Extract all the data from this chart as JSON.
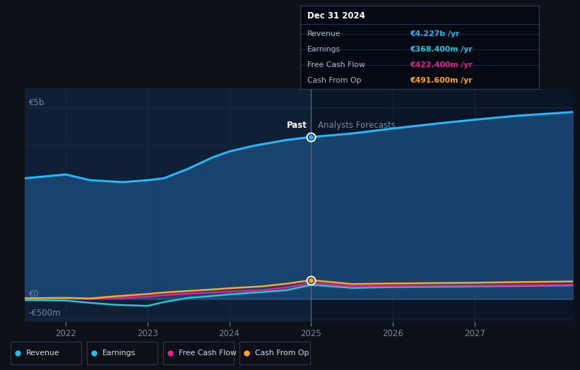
{
  "bg_color": "#0d1117",
  "plot_bg_past": "#0f1f35",
  "plot_bg_future": "#0a1628",
  "grid_color": "#1a2d45",
  "divider_x": 2025,
  "past_label": "Past",
  "forecast_label": "Analysts Forecasts",
  "ylabel_top": "€5b",
  "ylabel_zero": "€0",
  "ylabel_bottom": "-€500m",
  "x_ticks": [
    2022,
    2023,
    2024,
    2025,
    2026,
    2027
  ],
  "ylim": [
    -600,
    5500
  ],
  "xlim": [
    2021.5,
    2028.2
  ],
  "revenue": {
    "x": [
      2021.5,
      2022.0,
      2022.3,
      2022.7,
      2023.0,
      2023.2,
      2023.5,
      2023.8,
      2024.0,
      2024.3,
      2024.7,
      2025.0,
      2025.5,
      2026.0,
      2026.5,
      2027.0,
      2027.5,
      2028.2
    ],
    "y": [
      3150,
      3250,
      3100,
      3050,
      3100,
      3150,
      3400,
      3700,
      3850,
      4000,
      4150,
      4227,
      4320,
      4450,
      4570,
      4680,
      4780,
      4880
    ],
    "color": "#29b6f6",
    "fill_color": "#1a4a7a",
    "fill_alpha": 0.85,
    "linewidth": 2.2,
    "marker_x": 2025.0,
    "marker_y": 4227
  },
  "earnings": {
    "x": [
      2021.5,
      2022.0,
      2022.3,
      2022.6,
      2023.0,
      2023.2,
      2023.5,
      2023.8,
      2024.0,
      2024.4,
      2024.7,
      2025.0,
      2025.5,
      2026.0,
      2026.5,
      2027.0,
      2027.5,
      2028.2
    ],
    "y": [
      -30,
      -40,
      -100,
      -150,
      -180,
      -80,
      30,
      80,
      120,
      180,
      230,
      368,
      290,
      310,
      320,
      330,
      340,
      355
    ],
    "color": "#26c6da",
    "linewidth": 1.8
  },
  "fcf": {
    "x": [
      2021.5,
      2022.0,
      2022.3,
      2022.6,
      2023.0,
      2023.2,
      2023.5,
      2023.8,
      2024.0,
      2024.4,
      2024.7,
      2025.0,
      2025.5,
      2026.0,
      2026.5,
      2027.0,
      2027.5,
      2028.2
    ],
    "y": [
      10,
      15,
      0,
      20,
      60,
      100,
      140,
      170,
      190,
      230,
      300,
      422,
      330,
      340,
      345,
      352,
      360,
      372
    ],
    "color": "#e91e8c",
    "linewidth": 1.8
  },
  "cashop": {
    "x": [
      2021.5,
      2022.0,
      2022.3,
      2022.6,
      2023.0,
      2023.2,
      2023.5,
      2023.8,
      2024.0,
      2024.4,
      2024.7,
      2025.0,
      2025.5,
      2026.0,
      2026.5,
      2027.0,
      2027.5,
      2028.2
    ],
    "y": [
      20,
      30,
      15,
      70,
      130,
      170,
      210,
      250,
      280,
      330,
      400,
      491,
      390,
      405,
      415,
      425,
      440,
      458
    ],
    "color": "#ffa726",
    "linewidth": 1.8,
    "marker_x": 2025.0,
    "marker_y": 491
  },
  "tooltip": {
    "title": "Dec 31 2024",
    "title_color": "#ffffff",
    "bg": "#050a12",
    "border": "#2a3a55",
    "rows": [
      {
        "label": "Revenue",
        "value": "€4.227b /yr",
        "color": "#29b6f6"
      },
      {
        "label": "Earnings",
        "value": "€368.400m /yr",
        "color": "#26c6da"
      },
      {
        "label": "Free Cash Flow",
        "value": "€422.400m /yr",
        "color": "#e91e8c"
      },
      {
        "label": "Cash From Op",
        "value": "€491.600m /yr",
        "color": "#ffa726"
      }
    ]
  },
  "legend": [
    {
      "label": "Revenue",
      "color": "#29b6f6"
    },
    {
      "label": "Earnings",
      "color": "#26c6da"
    },
    {
      "label": "Free Cash Flow",
      "color": "#e91e8c"
    },
    {
      "label": "Cash From Op",
      "color": "#ffa726"
    }
  ]
}
